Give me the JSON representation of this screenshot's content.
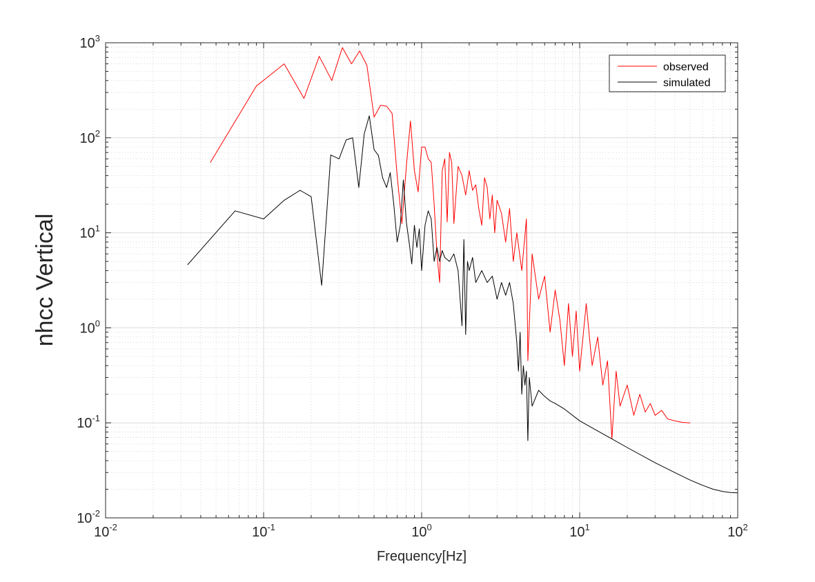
{
  "chart_data": {
    "type": "line",
    "title": "",
    "xlabel": "Frequency[Hz]",
    "ylabel": "nhcc Vertical",
    "xscale": "log",
    "yscale": "log",
    "xlim": [
      0.01,
      100
    ],
    "ylim": [
      0.01,
      1000
    ],
    "grid": true,
    "minor_grid": true,
    "legend_position": "top-right",
    "x_ticks": [
      {
        "base": "10",
        "exp": "-2",
        "value": 0.01
      },
      {
        "base": "10",
        "exp": "-1",
        "value": 0.1
      },
      {
        "base": "10",
        "exp": "0",
        "value": 1
      },
      {
        "base": "10",
        "exp": "1",
        "value": 10
      },
      {
        "base": "10",
        "exp": "2",
        "value": 100
      }
    ],
    "y_ticks": [
      {
        "base": "10",
        "exp": "-2",
        "value": 0.01
      },
      {
        "base": "10",
        "exp": "-1",
        "value": 0.1
      },
      {
        "base": "10",
        "exp": "0",
        "value": 1
      },
      {
        "base": "10",
        "exp": "1",
        "value": 10
      },
      {
        "base": "10",
        "exp": "2",
        "value": 100
      },
      {
        "base": "10",
        "exp": "3",
        "value": 1000
      }
    ],
    "series": [
      {
        "name": "observed",
        "color": "#ff0000",
        "points": [
          [
            0.046,
            55
          ],
          [
            0.09,
            350
          ],
          [
            0.135,
            600
          ],
          [
            0.18,
            260
          ],
          [
            0.225,
            720
          ],
          [
            0.27,
            400
          ],
          [
            0.315,
            890
          ],
          [
            0.36,
            600
          ],
          [
            0.405,
            820
          ],
          [
            0.45,
            580
          ],
          [
            0.5,
            165
          ],
          [
            0.55,
            220
          ],
          [
            0.6,
            215
          ],
          [
            0.65,
            180
          ],
          [
            0.7,
            40
          ],
          [
            0.75,
            12.5
          ],
          [
            0.8,
            50
          ],
          [
            0.85,
            150
          ],
          [
            0.9,
            45
          ],
          [
            0.95,
            27
          ],
          [
            1.0,
            80
          ],
          [
            1.05,
            80
          ],
          [
            1.1,
            60
          ],
          [
            1.15,
            55
          ],
          [
            1.2,
            20
          ],
          [
            1.25,
            6
          ],
          [
            1.3,
            3
          ],
          [
            1.35,
            45
          ],
          [
            1.4,
            60
          ],
          [
            1.45,
            13
          ],
          [
            1.5,
            70
          ],
          [
            1.55,
            55
          ],
          [
            1.6,
            12.5
          ],
          [
            1.7,
            50
          ],
          [
            1.8,
            40
          ],
          [
            1.9,
            25
          ],
          [
            2.0,
            45
          ],
          [
            2.1,
            28
          ],
          [
            2.2,
            32
          ],
          [
            2.3,
            18
          ],
          [
            2.4,
            12
          ],
          [
            2.5,
            38
          ],
          [
            2.6,
            30
          ],
          [
            2.7,
            14
          ],
          [
            2.8,
            25
          ],
          [
            2.9,
            10
          ],
          [
            3.0,
            22
          ],
          [
            3.2,
            16
          ],
          [
            3.4,
            8
          ],
          [
            3.6,
            18
          ],
          [
            3.8,
            5
          ],
          [
            4.0,
            10
          ],
          [
            4.3,
            4
          ],
          [
            4.6,
            14
          ],
          [
            4.7,
            0.45
          ],
          [
            5.0,
            6
          ],
          [
            5.5,
            2
          ],
          [
            6.0,
            3.5
          ],
          [
            6.5,
            0.9
          ],
          [
            7.0,
            2.5
          ],
          [
            7.5,
            1.2
          ],
          [
            8.0,
            0.4
          ],
          [
            8.5,
            1.8
          ],
          [
            9.0,
            0.5
          ],
          [
            9.5,
            1.5
          ],
          [
            10.0,
            0.35
          ],
          [
            11.0,
            1.8
          ],
          [
            12.0,
            0.4
          ],
          [
            13.0,
            0.8
          ],
          [
            14.0,
            0.25
          ],
          [
            15.0,
            0.45
          ],
          [
            16.0,
            0.068
          ],
          [
            17.0,
            0.35
          ],
          [
            18.0,
            0.15
          ],
          [
            20.0,
            0.25
          ],
          [
            22.0,
            0.12
          ],
          [
            24.0,
            0.2
          ],
          [
            26.0,
            0.13
          ],
          [
            28.0,
            0.16
          ],
          [
            30.0,
            0.12
          ],
          [
            33.0,
            0.135
          ],
          [
            36.0,
            0.11
          ],
          [
            40.0,
            0.105
          ],
          [
            45.0,
            0.101
          ],
          [
            50.0,
            0.1
          ]
        ]
      },
      {
        "name": "simulated",
        "color": "#000000",
        "points": [
          [
            0.033,
            4.6
          ],
          [
            0.066,
            17
          ],
          [
            0.1,
            14
          ],
          [
            0.135,
            22
          ],
          [
            0.17,
            28
          ],
          [
            0.2,
            24
          ],
          [
            0.233,
            2.8
          ],
          [
            0.266,
            66
          ],
          [
            0.3,
            60
          ],
          [
            0.333,
            95
          ],
          [
            0.366,
            100
          ],
          [
            0.4,
            30
          ],
          [
            0.433,
            110
          ],
          [
            0.466,
            170
          ],
          [
            0.5,
            75
          ],
          [
            0.533,
            65
          ],
          [
            0.566,
            38
          ],
          [
            0.6,
            30
          ],
          [
            0.633,
            43
          ],
          [
            0.666,
            20
          ],
          [
            0.7,
            8
          ],
          [
            0.733,
            12
          ],
          [
            0.766,
            36
          ],
          [
            0.8,
            13
          ],
          [
            0.833,
            8
          ],
          [
            0.866,
            4.7
          ],
          [
            0.9,
            12
          ],
          [
            0.933,
            7
          ],
          [
            0.966,
            11
          ],
          [
            1.0,
            4
          ],
          [
            1.05,
            12
          ],
          [
            1.1,
            17
          ],
          [
            1.15,
            14
          ],
          [
            1.2,
            5
          ],
          [
            1.25,
            7
          ],
          [
            1.3,
            5
          ],
          [
            1.35,
            6.5
          ],
          [
            1.4,
            5.5
          ],
          [
            1.5,
            5
          ],
          [
            1.6,
            6
          ],
          [
            1.7,
            4
          ],
          [
            1.8,
            1.05
          ],
          [
            1.85,
            8.5
          ],
          [
            1.9,
            0.85
          ],
          [
            1.95,
            5
          ],
          [
            2.0,
            4
          ],
          [
            2.1,
            5.5
          ],
          [
            2.2,
            3
          ],
          [
            2.4,
            4
          ],
          [
            2.6,
            3
          ],
          [
            2.8,
            3.5
          ],
          [
            3.0,
            2
          ],
          [
            3.2,
            3
          ],
          [
            3.4,
            2.2
          ],
          [
            3.6,
            3
          ],
          [
            3.8,
            1.8
          ],
          [
            4.0,
            0.7
          ],
          [
            4.1,
            0.35
          ],
          [
            4.2,
            0.9
          ],
          [
            4.3,
            0.2
          ],
          [
            4.4,
            0.4
          ],
          [
            4.5,
            0.25
          ],
          [
            4.6,
            0.35
          ],
          [
            4.7,
            0.065
          ],
          [
            4.8,
            0.3
          ],
          [
            5.0,
            0.15
          ],
          [
            5.5,
            0.22
          ],
          [
            6.0,
            0.19
          ],
          [
            6.5,
            0.17
          ],
          [
            7.0,
            0.16
          ],
          [
            8.0,
            0.14
          ],
          [
            10.0,
            0.105
          ],
          [
            15.0,
            0.072
          ],
          [
            20.0,
            0.055
          ],
          [
            30.0,
            0.038
          ],
          [
            40.0,
            0.03
          ],
          [
            50.0,
            0.025
          ],
          [
            60.0,
            0.022
          ],
          [
            70.0,
            0.02
          ],
          [
            80.0,
            0.019
          ],
          [
            90.0,
            0.0185
          ],
          [
            100.0,
            0.0183
          ]
        ]
      }
    ]
  }
}
